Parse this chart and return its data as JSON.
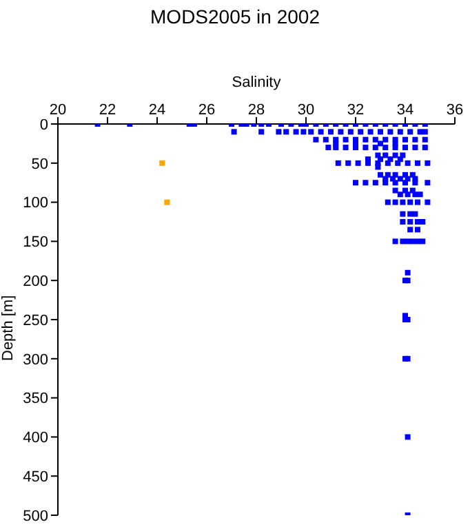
{
  "chart_data": {
    "type": "scatter",
    "title": "MODS2005 in 2002",
    "xlabel": "Salinity",
    "ylabel": "Depth [m]",
    "xlim": [
      20,
      36
    ],
    "xticks": [
      20,
      22,
      24,
      26,
      28,
      30,
      32,
      34,
      36
    ],
    "ylim": [
      500,
      0
    ],
    "yticks": [
      0,
      50,
      100,
      150,
      200,
      250,
      300,
      350,
      400,
      450,
      500
    ],
    "grid": false,
    "legend": false,
    "marker": "square",
    "series": [
      {
        "color": "#0000ff",
        "x": [
          21.6,
          22.9,
          25.3,
          25.5,
          27.0,
          27.4,
          27.6,
          27.9,
          28.2,
          28.5,
          29.0,
          29.4,
          29.8,
          30.0,
          30.4,
          30.8,
          31.2,
          31.6,
          32.0,
          32.4,
          32.8,
          33.2,
          33.6,
          34.0,
          34.4,
          34.8,
          27.1,
          28.2,
          28.9,
          29.2,
          29.6,
          29.9,
          30.2,
          30.6,
          31.0,
          31.4,
          31.8,
          32.2,
          32.6,
          33.0,
          33.4,
          33.8,
          34.2,
          34.6,
          34.8,
          30.4,
          30.8,
          31.2,
          31.6,
          32.0,
          32.4,
          32.8,
          33.2,
          33.6,
          34.0,
          34.4,
          34.8,
          31.2,
          32.0,
          33.0,
          33.6,
          30.9,
          31.2,
          31.6,
          32.0,
          32.4,
          32.8,
          33.2,
          33.6,
          34.0,
          34.4,
          34.8,
          32.9,
          33.2,
          33.6,
          33.9,
          32.5,
          33.0,
          33.4,
          33.8,
          31.3,
          31.7,
          32.1,
          32.5,
          32.9,
          33.3,
          33.7,
          34.1,
          34.5,
          34.9,
          32.9,
          33.0,
          33.3,
          33.6,
          34.0,
          34.3,
          33.2,
          33.5,
          33.8,
          34.1,
          34.4,
          32.0,
          32.4,
          32.8,
          33.2,
          33.6,
          34.0,
          34.4,
          34.9,
          33.6,
          34.0,
          34.3,
          33.8,
          34.1,
          34.4,
          34.6,
          33.3,
          33.6,
          33.9,
          34.2,
          34.5,
          34.9,
          33.9,
          34.2,
          34.4,
          33.9,
          34.2,
          34.5,
          34.7,
          34.2,
          34.5,
          33.6,
          33.9,
          34.1,
          34.3,
          34.5,
          34.7,
          34.1,
          34.0,
          34.1,
          34.0,
          34.0,
          34.1,
          34.0,
          34.1,
          34.1,
          34.1
        ],
        "values": [
          0,
          0,
          0,
          0,
          0,
          0,
          0,
          0,
          0,
          0,
          0,
          0,
          0,
          0,
          0,
          0,
          0,
          0,
          0,
          0,
          0,
          0,
          0,
          0,
          0,
          0,
          10,
          10,
          10,
          10,
          10,
          10,
          10,
          10,
          10,
          10,
          10,
          10,
          10,
          10,
          10,
          10,
          10,
          10,
          10,
          20,
          20,
          20,
          20,
          20,
          20,
          20,
          20,
          20,
          20,
          20,
          20,
          25,
          25,
          25,
          25,
          30,
          30,
          30,
          30,
          30,
          30,
          30,
          30,
          30,
          30,
          30,
          40,
          40,
          40,
          40,
          45,
          45,
          45,
          45,
          50,
          50,
          50,
          50,
          50,
          50,
          50,
          50,
          50,
          50,
          55,
          65,
          65,
          65,
          65,
          65,
          70,
          70,
          70,
          70,
          70,
          75,
          75,
          75,
          75,
          75,
          75,
          75,
          75,
          85,
          85,
          85,
          90,
          90,
          90,
          90,
          100,
          100,
          100,
          100,
          100,
          100,
          115,
          115,
          115,
          125,
          125,
          125,
          125,
          135,
          135,
          150,
          150,
          150,
          150,
          150,
          150,
          190,
          200,
          200,
          245,
          250,
          250,
          300,
          300,
          400,
          500
        ]
      },
      {
        "color": "#ffa500",
        "x": [
          24.2,
          24.4
        ],
        "values": [
          50,
          100
        ]
      }
    ]
  }
}
